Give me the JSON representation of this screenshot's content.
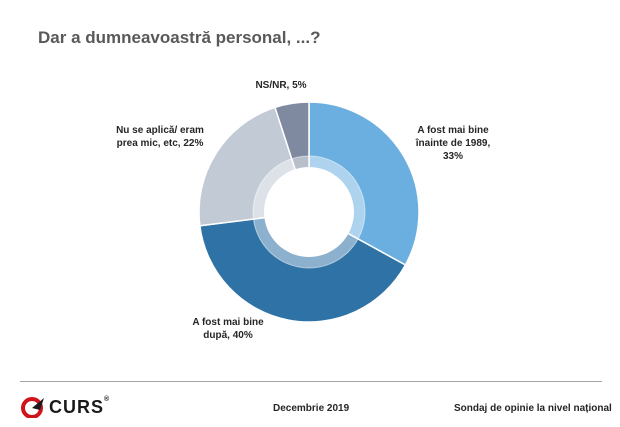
{
  "title": "Dar a dumneavoastră personal, ...?",
  "chart_data": {
    "type": "pie",
    "style": "donut",
    "slices": [
      {
        "label": "A fost mai bine înainte de 1989, 33%",
        "value": 33,
        "color": "#6aafe0"
      },
      {
        "label": "A fost mai bine după, 40%",
        "value": 40,
        "color": "#2e72a6"
      },
      {
        "label": "Nu se aplică/ eram prea mic, etc, 22%",
        "value": 22,
        "color": "#c2cad6"
      },
      {
        "label": "NS/NR, 5%",
        "value": 5,
        "color": "#7f8aa0"
      }
    ]
  },
  "labels": {
    "slice_0": "A fost mai bine\nînainte de 1989,\n33%",
    "slice_1": "A fost mai bine\ndupă, 40%",
    "slice_2": "Nu se aplică/ eram\nprea mic, etc, 22%",
    "slice_3": "NS/NR, 5%"
  },
  "footer": {
    "logo": "CURS",
    "logo_mark": "®",
    "date": "Decembrie 2019",
    "source": "Sondaj de opinie la nivel național"
  }
}
